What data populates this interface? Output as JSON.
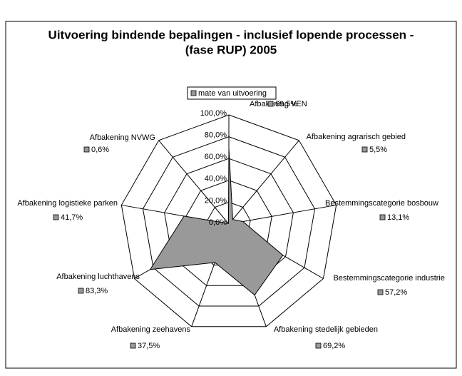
{
  "chart_data": {
    "type": "radar",
    "title_lines": [
      "Uitvoering bindende bepalingen - inclusief lopende processen -",
      "(fase RUP) 2005"
    ],
    "categories": [
      "Afbakening VEN",
      "Afbakening agrarisch gebied",
      "Bestemmingscategorie bosbouw",
      "Bestemmingscategorie industrie",
      "Afbakening stedelijk gebieden",
      "Afbakening zeehavens",
      "Afbakening luchthavens",
      "Afbakening logistieke parken",
      "Afbakening NVWG"
    ],
    "series": [
      {
        "name": "mate van uitvoering",
        "color": "#999999",
        "values": [
          69.5,
          5.5,
          13.1,
          57.2,
          69.2,
          37.5,
          83.3,
          41.7,
          0.6
        ],
        "value_labels": [
          "69,5%",
          "5,5%",
          "13,1%",
          "57,2%",
          "69,2%",
          "37,5%",
          "83,3%",
          "41,7%",
          "0,6%"
        ]
      }
    ],
    "ylim": [
      0,
      100
    ],
    "yticks": [
      {
        "value": 0,
        "label": "0,0%"
      },
      {
        "value": 20,
        "label": "20,0%"
      },
      {
        "value": 40,
        "label": "40,0%"
      },
      {
        "value": 60,
        "label": "60,0%"
      },
      {
        "value": 80,
        "label": "80,0%"
      },
      {
        "value": 100,
        "label": "100,0%"
      }
    ],
    "legend": "top"
  }
}
